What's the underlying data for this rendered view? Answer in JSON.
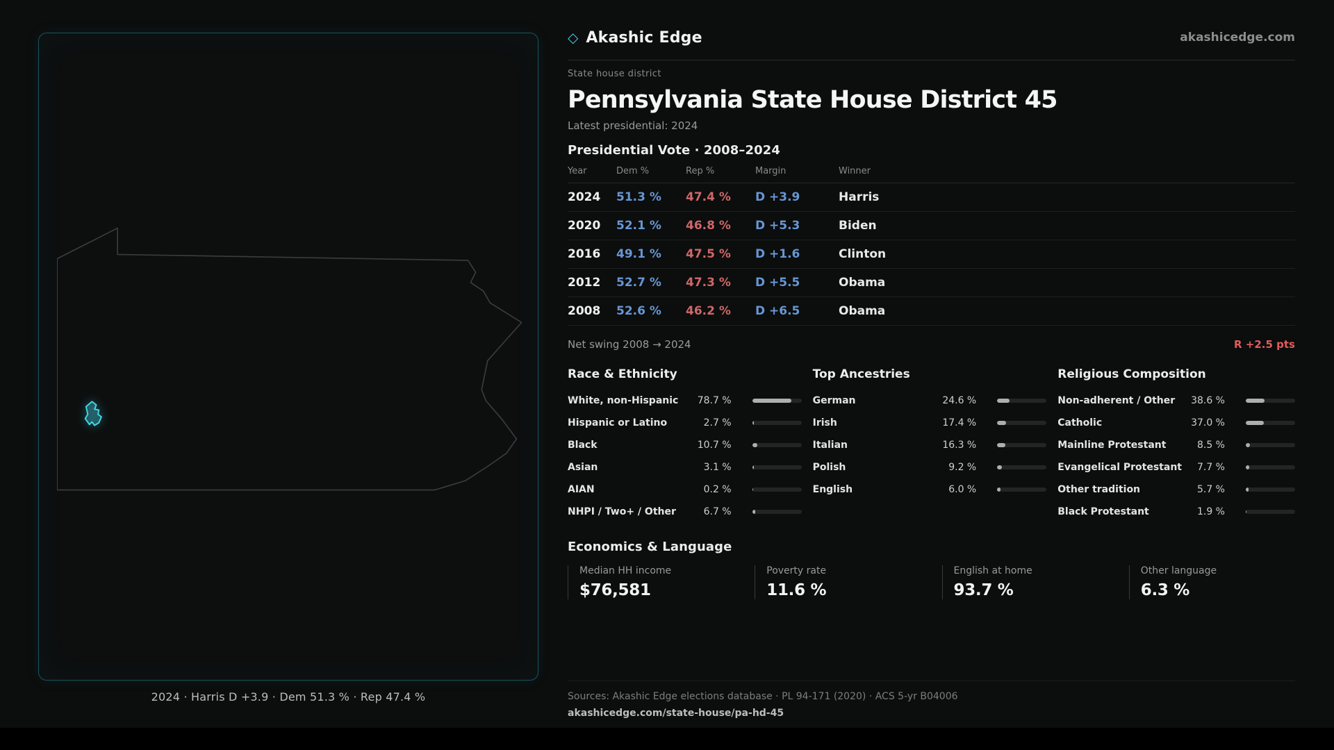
{
  "brand": {
    "diamond_icon": "◇",
    "name": "Akashic Edge",
    "domain_link": "akashicedge.com"
  },
  "header": {
    "kicker": "State house district",
    "title": "Pennsylvania State House District 45",
    "latest_line": "Latest presidential: 2024"
  },
  "map_panel": {
    "caption": "2024 · Harris D +3.9 · Dem 51.3 % · Rep 47.4 %"
  },
  "vote_table": {
    "title": "Presidential Vote · 2008–2024",
    "columns": [
      "Year",
      "Dem %",
      "Rep %",
      "Margin",
      "Winner"
    ],
    "rows": [
      {
        "year": "2024",
        "dem": "51.3 %",
        "rep": "47.4 %",
        "margin": "D +3.9",
        "winner": "Harris"
      },
      {
        "year": "2020",
        "dem": "52.1 %",
        "rep": "46.8 %",
        "margin": "D +5.3",
        "winner": "Biden"
      },
      {
        "year": "2016",
        "dem": "49.1 %",
        "rep": "47.5 %",
        "margin": "D +1.6",
        "winner": "Clinton"
      },
      {
        "year": "2012",
        "dem": "52.7 %",
        "rep": "47.3 %",
        "margin": "D +5.5",
        "winner": "Obama"
      },
      {
        "year": "2008",
        "dem": "52.6 %",
        "rep": "46.2 %",
        "margin": "D +6.5",
        "winner": "Obama"
      }
    ],
    "net_swing_label": "Net swing 2008 → 2024",
    "net_swing_value": "R +2.5 pts"
  },
  "demographics": [
    {
      "title": "Race & Ethnicity",
      "rows": [
        {
          "label": "White, non-Hispanic",
          "value": "78.7 %",
          "pct": 78.7
        },
        {
          "label": "Hispanic or Latino",
          "value": "2.7 %",
          "pct": 2.7
        },
        {
          "label": "Black",
          "value": "10.7 %",
          "pct": 10.7
        },
        {
          "label": "Asian",
          "value": "3.1 %",
          "pct": 3.1
        },
        {
          "label": "AIAN",
          "value": "0.2 %",
          "pct": 0.2
        },
        {
          "label": "NHPI / Two+ / Other",
          "value": "6.7 %",
          "pct": 6.7
        }
      ]
    },
    {
      "title": "Top Ancestries",
      "rows": [
        {
          "label": "German",
          "value": "24.6 %",
          "pct": 24.6
        },
        {
          "label": "Irish",
          "value": "17.4 %",
          "pct": 17.4
        },
        {
          "label": "Italian",
          "value": "16.3 %",
          "pct": 16.3
        },
        {
          "label": "Polish",
          "value": "9.2 %",
          "pct": 9.2
        },
        {
          "label": "English",
          "value": "6.0 %",
          "pct": 6.0
        }
      ]
    },
    {
      "title": "Religious Composition",
      "rows": [
        {
          "label": "Non-adherent / Other",
          "value": "38.6 %",
          "pct": 38.6
        },
        {
          "label": "Catholic",
          "value": "37.0 %",
          "pct": 37.0
        },
        {
          "label": "Mainline Protestant",
          "value": "8.5 %",
          "pct": 8.5
        },
        {
          "label": "Evangelical Protestant",
          "value": "7.7 %",
          "pct": 7.7
        },
        {
          "label": "Other tradition",
          "value": "5.7 %",
          "pct": 5.7
        },
        {
          "label": "Black Protestant",
          "value": "1.9 %",
          "pct": 1.9
        }
      ]
    }
  ],
  "economics": {
    "title": "Economics & Language",
    "stats": [
      {
        "label": "Median HH income",
        "value": "$76,581"
      },
      {
        "label": "Poverty rate",
        "value": "11.6 %"
      },
      {
        "label": "English at home",
        "value": "93.7 %"
      },
      {
        "label": "Other language",
        "value": "6.3 %"
      }
    ]
  },
  "footer": {
    "sources": "Sources: Akashic Edge elections database · PL 94-171 (2020) · ACS 5-yr B04006",
    "permalink": "akashicedge.com/state-house/pa-hd-45"
  },
  "colors": {
    "dem_blue": "#6697d4",
    "rep_red": "#cf6767",
    "swing_red": "#e25c5c",
    "accent_cyan": "#3fc9db",
    "panel_border_teal": "#175560"
  },
  "chart_data": [
    {
      "type": "table",
      "title": "Presidential Vote · 2008–2024",
      "columns": [
        "Year",
        "Dem %",
        "Rep %",
        "Margin",
        "Winner"
      ],
      "rows": [
        [
          "2024",
          51.3,
          47.4,
          "D +3.9",
          "Harris"
        ],
        [
          "2020",
          52.1,
          46.8,
          "D +5.3",
          "Biden"
        ],
        [
          "2016",
          49.1,
          47.5,
          "D +1.6",
          "Clinton"
        ],
        [
          "2012",
          52.7,
          47.3,
          "D +5.5",
          "Obama"
        ],
        [
          "2008",
          52.6,
          46.2,
          "D +6.5",
          "Obama"
        ]
      ],
      "annotation": "Net swing 2008 → 2024: R +2.5 pts"
    },
    {
      "type": "bar",
      "title": "Race & Ethnicity",
      "unit": "%",
      "xlim": [
        0,
        100
      ],
      "categories": [
        "White, non-Hispanic",
        "Hispanic or Latino",
        "Black",
        "Asian",
        "AIAN",
        "NHPI / Two+ / Other"
      ],
      "values": [
        78.7,
        2.7,
        10.7,
        3.1,
        0.2,
        6.7
      ]
    },
    {
      "type": "bar",
      "title": "Top Ancestries",
      "unit": "%",
      "xlim": [
        0,
        100
      ],
      "categories": [
        "German",
        "Irish",
        "Italian",
        "Polish",
        "English"
      ],
      "values": [
        24.6,
        17.4,
        16.3,
        9.2,
        6.0
      ]
    },
    {
      "type": "bar",
      "title": "Religious Composition",
      "unit": "%",
      "xlim": [
        0,
        100
      ],
      "categories": [
        "Non-adherent / Other",
        "Catholic",
        "Mainline Protestant",
        "Evangelical Protestant",
        "Other tradition",
        "Black Protestant"
      ],
      "values": [
        38.6,
        37.0,
        8.5,
        7.7,
        5.7,
        1.9
      ]
    }
  ]
}
